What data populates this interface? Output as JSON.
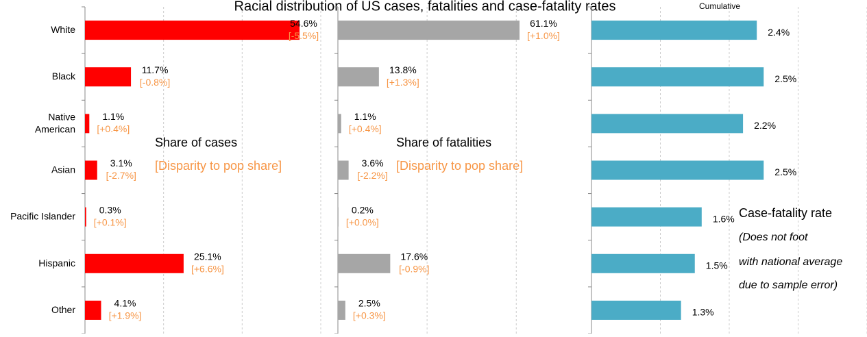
{
  "chart_data": [
    {
      "type": "bar",
      "orientation": "horizontal",
      "title": "Racial distribution of US cases, fatalities and case-fatality rates",
      "subtitle": "Cumulative",
      "categories": [
        "White",
        "Black",
        "Native\nAmerican",
        "Asian",
        "Pacific Islander",
        "Hispanic",
        "Other"
      ],
      "values": [
        54.6,
        11.7,
        1.1,
        3.1,
        0.3,
        25.1,
        4.1
      ],
      "value_labels": [
        "54.6%",
        "11.7%",
        "1.1%",
        "3.1%",
        "0.3%",
        "25.1%",
        "4.1%"
      ],
      "disparity": {
        "values": [
          -5.5,
          -0.8,
          0.4,
          -2.7,
          0.1,
          6.6,
          1.9
        ],
        "value_labels": [
          "[-5.5%]",
          "[-0.8%]",
          "[+0.4%]",
          "[-2.7%]",
          "[+0.1%]",
          "[+6.6%]",
          "[+1.9%]"
        ],
        "color": "#f79646"
      },
      "color": "#ff0000",
      "xlim": [
        0,
        60
      ],
      "xticks": [
        0,
        20,
        40,
        60
      ],
      "grid": true,
      "annotations": [
        "Share of cases",
        "[Disparity to pop share]"
      ]
    },
    {
      "type": "bar",
      "orientation": "horizontal",
      "values": [
        61.1,
        13.8,
        1.1,
        3.6,
        0.2,
        17.6,
        2.5
      ],
      "value_labels": [
        "61.1%",
        "13.8%",
        "1.1%",
        "3.6%",
        "0.2%",
        "17.6%",
        "2.5%"
      ],
      "disparity": {
        "values": [
          1.0,
          1.3,
          0.4,
          -2.2,
          0.0,
          -0.9,
          0.3
        ],
        "value_labels": [
          "[+1.0%]",
          "[+1.3%]",
          "[+0.4%]",
          "[-2.2%]",
          "[+0.0%]",
          "[-0.9%]",
          "[+0.3%]"
        ],
        "color": "#f79646"
      },
      "color": "#a6a6a6",
      "xlim": [
        0,
        80
      ],
      "xticks": [
        0,
        30,
        60
      ],
      "grid": true,
      "annotations": [
        "Share of fatalities",
        "[Disparity to pop share]"
      ]
    },
    {
      "type": "bar",
      "orientation": "horizontal",
      "values": [
        2.4,
        2.5,
        2.2,
        2.5,
        1.6,
        1.5,
        1.3
      ],
      "value_labels": [
        "2.4%",
        "2.5%",
        "2.2%",
        "2.5%",
        "1.6%",
        "1.5%",
        "1.3%"
      ],
      "color": "#4bacc6",
      "xlim": [
        0,
        4
      ],
      "xticks": [
        0,
        1,
        2,
        3,
        4
      ],
      "grid": true,
      "annotations": [
        "Case-fatality rate",
        "(Does not foot",
        "with national average",
        "due to sample error)"
      ]
    }
  ]
}
